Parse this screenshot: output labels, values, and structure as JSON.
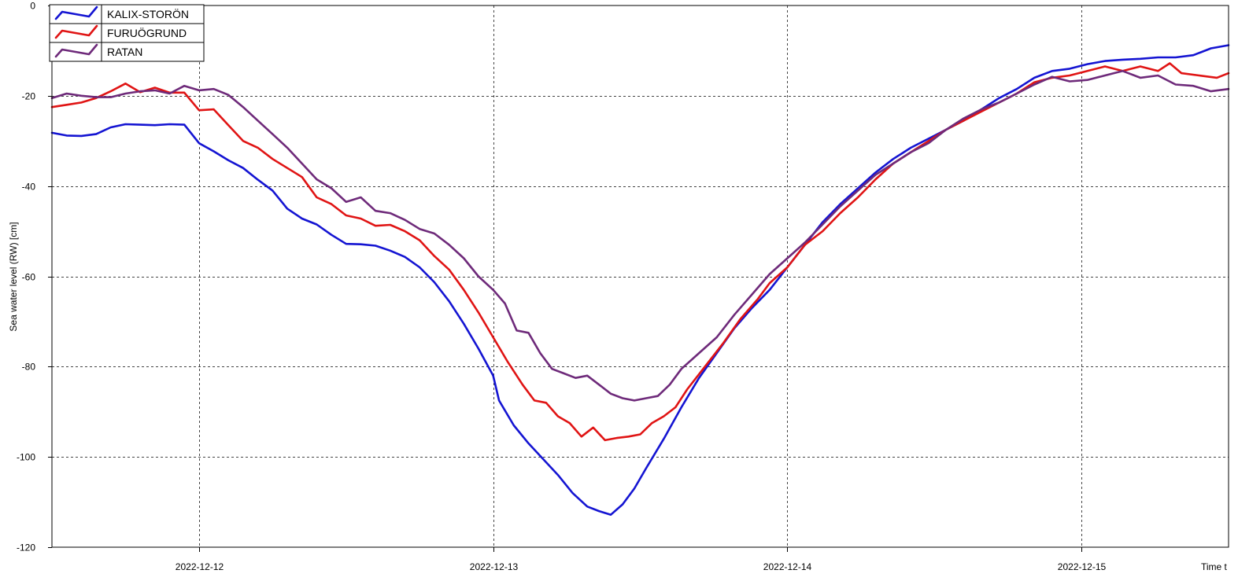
{
  "chart_data": {
    "type": "line",
    "title": "",
    "ylabel": "Sea water level (RW) [cm]",
    "xlabel": "Time t",
    "x_unit": "days since 2022-12-11 00:00",
    "xlim": [
      11.5,
      15.5
    ],
    "ylim": [
      -120,
      0
    ],
    "y_ticks": [
      0,
      -20,
      -40,
      -60,
      -80,
      -100,
      -120
    ],
    "x_ticks": [
      {
        "label": "2022-12-12",
        "x": 12
      },
      {
        "label": "2022-12-13",
        "x": 13
      },
      {
        "label": "2022-12-14",
        "x": 14
      },
      {
        "label": "2022-12-15",
        "x": 15
      }
    ],
    "grid": true,
    "legend_position": "top-left",
    "series": [
      {
        "name": "KALIX-STORÖN",
        "color": "#1414d2",
        "points": [
          [
            11.5,
            -28.2
          ],
          [
            11.55,
            -28.8
          ],
          [
            11.6,
            -28.9
          ],
          [
            11.65,
            -28.5
          ],
          [
            11.7,
            -27.0
          ],
          [
            11.75,
            -26.3
          ],
          [
            11.8,
            -26.4
          ],
          [
            11.85,
            -26.5
          ],
          [
            11.9,
            -26.3
          ],
          [
            11.95,
            -26.4
          ],
          [
            12.0,
            -30.5
          ],
          [
            12.05,
            -32.3
          ],
          [
            12.1,
            -34.3
          ],
          [
            12.15,
            -36.0
          ],
          [
            12.2,
            -38.6
          ],
          [
            12.25,
            -41.0
          ],
          [
            12.3,
            -45.0
          ],
          [
            12.35,
            -47.2
          ],
          [
            12.4,
            -48.5
          ],
          [
            12.45,
            -50.8
          ],
          [
            12.5,
            -52.8
          ],
          [
            12.55,
            -52.9
          ],
          [
            12.6,
            -53.2
          ],
          [
            12.65,
            -54.3
          ],
          [
            12.7,
            -55.7
          ],
          [
            12.75,
            -58.0
          ],
          [
            12.8,
            -61.3
          ],
          [
            12.85,
            -65.5
          ],
          [
            12.9,
            -70.5
          ],
          [
            12.95,
            -76.0
          ],
          [
            13.0,
            -82.0
          ],
          [
            13.02,
            -87.5
          ],
          [
            13.07,
            -93.0
          ],
          [
            13.12,
            -97.0
          ],
          [
            13.17,
            -100.5
          ],
          [
            13.22,
            -104.0
          ],
          [
            13.27,
            -108.0
          ],
          [
            13.32,
            -111.0
          ],
          [
            13.36,
            -112.0
          ],
          [
            13.4,
            -112.8
          ],
          [
            13.44,
            -110.5
          ],
          [
            13.48,
            -107.0
          ],
          [
            13.52,
            -102.5
          ],
          [
            13.58,
            -96.0
          ],
          [
            13.64,
            -89.0
          ],
          [
            13.7,
            -82.5
          ],
          [
            13.76,
            -77.0
          ],
          [
            13.82,
            -71.5
          ],
          [
            13.88,
            -67.0
          ],
          [
            13.94,
            -63.0
          ],
          [
            14.0,
            -58.0
          ],
          [
            14.06,
            -53.0
          ],
          [
            14.12,
            -48.0
          ],
          [
            14.18,
            -44.0
          ],
          [
            14.24,
            -40.5
          ],
          [
            14.3,
            -37.0
          ],
          [
            14.36,
            -34.0
          ],
          [
            14.42,
            -31.5
          ],
          [
            14.48,
            -29.5
          ],
          [
            14.54,
            -27.5
          ],
          [
            14.6,
            -25.5
          ],
          [
            14.66,
            -23.0
          ],
          [
            14.72,
            -20.5
          ],
          [
            14.78,
            -18.5
          ],
          [
            14.84,
            -16.0
          ],
          [
            14.9,
            -14.5
          ],
          [
            14.96,
            -14.0
          ],
          [
            15.02,
            -13.0
          ],
          [
            15.08,
            -12.3
          ],
          [
            15.14,
            -12.0
          ],
          [
            15.2,
            -11.8
          ],
          [
            15.26,
            -11.5
          ],
          [
            15.32,
            -11.5
          ],
          [
            15.38,
            -11.0
          ],
          [
            15.44,
            -9.5
          ],
          [
            15.5,
            -8.8
          ]
        ]
      },
      {
        "name": "FURUÖGRUND",
        "color": "#e01414",
        "points": [
          [
            11.5,
            -22.5
          ],
          [
            11.55,
            -22.0
          ],
          [
            11.6,
            -21.5
          ],
          [
            11.65,
            -20.5
          ],
          [
            11.7,
            -19.0
          ],
          [
            11.75,
            -17.3
          ],
          [
            11.8,
            -19.2
          ],
          [
            11.85,
            -18.2
          ],
          [
            11.9,
            -19.3
          ],
          [
            11.95,
            -19.3
          ],
          [
            12.0,
            -23.2
          ],
          [
            12.05,
            -23.0
          ],
          [
            12.1,
            -26.5
          ],
          [
            12.15,
            -30.0
          ],
          [
            12.2,
            -31.5
          ],
          [
            12.25,
            -34.0
          ],
          [
            12.3,
            -36.0
          ],
          [
            12.35,
            -38.0
          ],
          [
            12.4,
            -42.5
          ],
          [
            12.45,
            -44.0
          ],
          [
            12.5,
            -46.5
          ],
          [
            12.55,
            -47.2
          ],
          [
            12.6,
            -48.8
          ],
          [
            12.65,
            -48.6
          ],
          [
            12.7,
            -50.0
          ],
          [
            12.75,
            -52.0
          ],
          [
            12.8,
            -55.5
          ],
          [
            12.85,
            -58.5
          ],
          [
            12.9,
            -63.0
          ],
          [
            12.95,
            -68.0
          ],
          [
            13.0,
            -73.5
          ],
          [
            13.05,
            -79.0
          ],
          [
            13.1,
            -84.0
          ],
          [
            13.14,
            -87.5
          ],
          [
            13.18,
            -88.0
          ],
          [
            13.22,
            -91.0
          ],
          [
            13.26,
            -92.5
          ],
          [
            13.3,
            -95.5
          ],
          [
            13.34,
            -93.5
          ],
          [
            13.38,
            -96.3
          ],
          [
            13.42,
            -95.8
          ],
          [
            13.46,
            -95.5
          ],
          [
            13.5,
            -95.0
          ],
          [
            13.54,
            -92.5
          ],
          [
            13.58,
            -91.0
          ],
          [
            13.62,
            -89.0
          ],
          [
            13.66,
            -85.0
          ],
          [
            13.72,
            -80.0
          ],
          [
            13.78,
            -75.0
          ],
          [
            13.84,
            -69.5
          ],
          [
            13.9,
            -65.0
          ],
          [
            13.94,
            -61.5
          ],
          [
            14.0,
            -58.0
          ],
          [
            14.06,
            -53.0
          ],
          [
            14.12,
            -50.0
          ],
          [
            14.18,
            -46.0
          ],
          [
            14.24,
            -42.5
          ],
          [
            14.3,
            -38.5
          ],
          [
            14.36,
            -35.0
          ],
          [
            14.42,
            -32.5
          ],
          [
            14.48,
            -30.0
          ],
          [
            14.54,
            -27.5
          ],
          [
            14.6,
            -25.5
          ],
          [
            14.66,
            -23.5
          ],
          [
            14.72,
            -21.5
          ],
          [
            14.78,
            -19.5
          ],
          [
            14.84,
            -17.0
          ],
          [
            14.9,
            -16.0
          ],
          [
            14.96,
            -15.5
          ],
          [
            15.02,
            -14.5
          ],
          [
            15.08,
            -13.5
          ],
          [
            15.14,
            -14.5
          ],
          [
            15.2,
            -13.5
          ],
          [
            15.26,
            -14.5
          ],
          [
            15.3,
            -12.8
          ],
          [
            15.34,
            -15.0
          ],
          [
            15.4,
            -15.5
          ],
          [
            15.46,
            -16.0
          ],
          [
            15.5,
            -15.0
          ]
        ]
      },
      {
        "name": "RATAN",
        "color": "#6e2a7a",
        "points": [
          [
            11.5,
            -20.5
          ],
          [
            11.55,
            -19.5
          ],
          [
            11.6,
            -20.0
          ],
          [
            11.65,
            -20.3
          ],
          [
            11.7,
            -20.3
          ],
          [
            11.75,
            -19.5
          ],
          [
            11.8,
            -19.0
          ],
          [
            11.85,
            -18.8
          ],
          [
            11.9,
            -19.5
          ],
          [
            11.95,
            -17.8
          ],
          [
            12.0,
            -18.8
          ],
          [
            12.05,
            -18.5
          ],
          [
            12.1,
            -19.8
          ],
          [
            12.15,
            -22.5
          ],
          [
            12.2,
            -25.5
          ],
          [
            12.25,
            -28.5
          ],
          [
            12.3,
            -31.5
          ],
          [
            12.35,
            -35.0
          ],
          [
            12.4,
            -38.5
          ],
          [
            12.45,
            -40.5
          ],
          [
            12.5,
            -43.5
          ],
          [
            12.55,
            -42.5
          ],
          [
            12.6,
            -45.5
          ],
          [
            12.65,
            -46.0
          ],
          [
            12.7,
            -47.5
          ],
          [
            12.75,
            -49.5
          ],
          [
            12.8,
            -50.5
          ],
          [
            12.85,
            -53.0
          ],
          [
            12.9,
            -56.0
          ],
          [
            12.95,
            -60.0
          ],
          [
            13.0,
            -63.0
          ],
          [
            13.04,
            -66.0
          ],
          [
            13.08,
            -72.0
          ],
          [
            13.12,
            -72.5
          ],
          [
            13.16,
            -77.0
          ],
          [
            13.2,
            -80.5
          ],
          [
            13.24,
            -81.5
          ],
          [
            13.28,
            -82.5
          ],
          [
            13.32,
            -82.0
          ],
          [
            13.36,
            -84.0
          ],
          [
            13.4,
            -86.0
          ],
          [
            13.44,
            -87.0
          ],
          [
            13.48,
            -87.5
          ],
          [
            13.52,
            -87.0
          ],
          [
            13.56,
            -86.5
          ],
          [
            13.6,
            -84.0
          ],
          [
            13.64,
            -80.5
          ],
          [
            13.7,
            -77.0
          ],
          [
            13.76,
            -73.5
          ],
          [
            13.82,
            -68.5
          ],
          [
            13.88,
            -64.0
          ],
          [
            13.94,
            -59.5
          ],
          [
            14.0,
            -56.0
          ],
          [
            14.06,
            -52.5
          ],
          [
            14.12,
            -48.5
          ],
          [
            14.18,
            -44.5
          ],
          [
            14.24,
            -41.0
          ],
          [
            14.3,
            -37.5
          ],
          [
            14.36,
            -35.0
          ],
          [
            14.42,
            -32.5
          ],
          [
            14.48,
            -30.5
          ],
          [
            14.54,
            -27.5
          ],
          [
            14.6,
            -25.0
          ],
          [
            14.66,
            -23.0
          ],
          [
            14.72,
            -21.5
          ],
          [
            14.78,
            -19.5
          ],
          [
            14.84,
            -17.5
          ],
          [
            14.9,
            -15.8
          ],
          [
            14.96,
            -16.8
          ],
          [
            15.02,
            -16.5
          ],
          [
            15.08,
            -15.5
          ],
          [
            15.14,
            -14.5
          ],
          [
            15.2,
            -16.0
          ],
          [
            15.26,
            -15.5
          ],
          [
            15.32,
            -17.5
          ],
          [
            15.38,
            -17.8
          ],
          [
            15.44,
            -19.0
          ],
          [
            15.5,
            -18.5
          ]
        ]
      }
    ]
  }
}
